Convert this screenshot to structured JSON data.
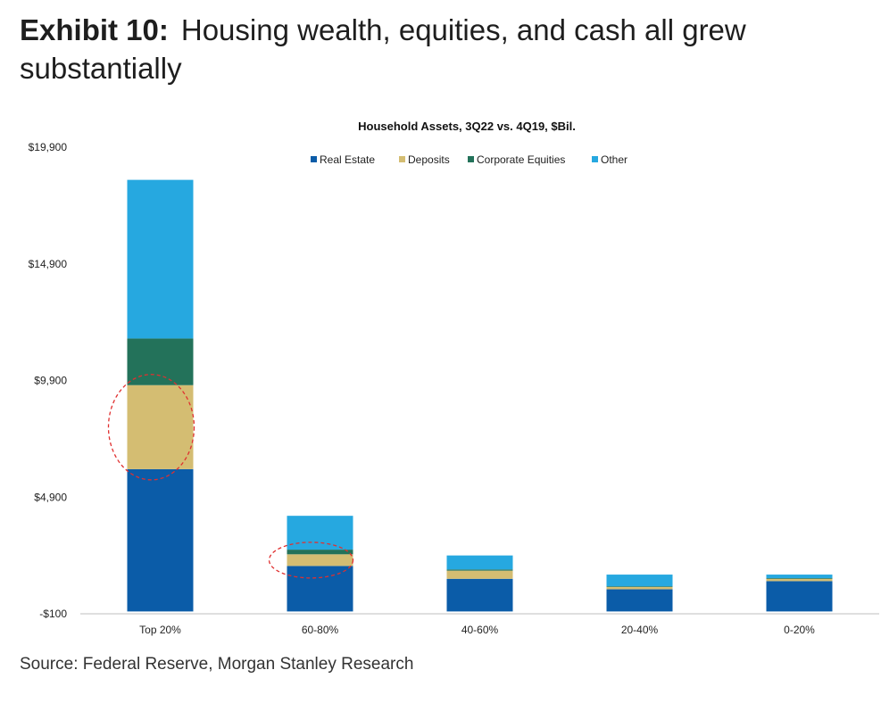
{
  "exhibit": {
    "label": "Exhibit 10:",
    "title": "Housing wealth, equities, and cash all grew substantially"
  },
  "source": "Source: Federal Reserve, Morgan Stanley Research",
  "chart_data": {
    "type": "bar",
    "stacked": true,
    "title": "Household Assets, 3Q22 vs. 4Q19, $Bil.",
    "xlabel": "",
    "ylabel": "",
    "categories": [
      "Top 20%",
      "60-80%",
      "40-60%",
      "20-40%",
      "0-20%"
    ],
    "ylim": [
      -100,
      19900
    ],
    "yticks": [
      -100,
      4900,
      9900,
      14900,
      19900
    ],
    "ytick_labels": [
      "-$100",
      "$4,900",
      "$9,900",
      "$14,900",
      "$19,900"
    ],
    "legend_position": "top",
    "grid": false,
    "series": [
      {
        "name": "Real Estate",
        "color": "#0b5ca8",
        "values": [
          6100,
          1950,
          1400,
          950,
          1300
        ]
      },
      {
        "name": "Deposits",
        "color": "#d4bd72",
        "values": [
          3600,
          500,
          350,
          100,
          100
        ]
      },
      {
        "name": "Corporate Equities",
        "color": "#23725a",
        "values": [
          2000,
          200,
          50,
          30,
          30
        ]
      },
      {
        "name": "Other",
        "color": "#26a8e0",
        "values": [
          6800,
          1450,
          600,
          500,
          150
        ]
      }
    ],
    "annotations": [
      {
        "type": "dashed-circle",
        "category": "Top 20%",
        "series": "Deposits",
        "color": "#e03030"
      },
      {
        "type": "dashed-circle",
        "category": "60-80%",
        "series": "Deposits",
        "color": "#e03030"
      }
    ]
  }
}
